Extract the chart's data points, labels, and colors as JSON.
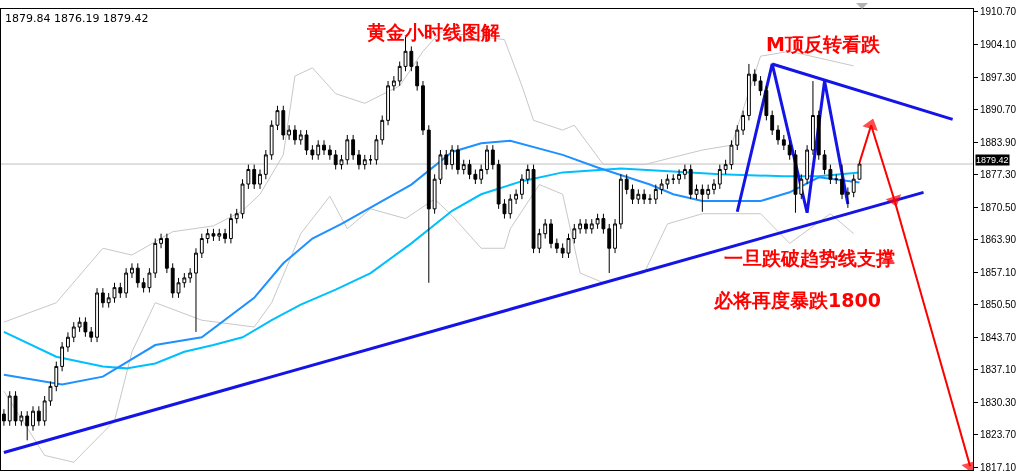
{
  "chart_data": {
    "type": "candlestick",
    "categories": [
      null,
      null,
      null,
      null,
      null,
      null,
      null,
      null,
      null,
      null,
      null,
      null,
      null,
      null,
      null,
      null,
      null,
      null,
      null,
      null,
      null,
      null,
      null,
      null,
      null,
      null,
      null,
      null,
      null,
      null,
      null,
      null,
      null,
      null,
      null,
      null,
      null,
      null,
      null,
      null,
      null,
      null,
      null,
      null,
      null,
      null,
      null,
      null,
      null,
      null,
      null,
      null,
      null,
      null,
      null,
      null,
      null,
      null,
      null,
      null,
      null,
      null,
      null,
      null,
      null,
      null,
      null,
      null,
      null,
      null,
      null,
      null,
      null,
      null,
      null,
      null,
      null,
      null,
      null,
      null,
      null,
      null,
      null,
      null,
      null,
      null,
      null,
      null,
      null,
      null,
      null,
      null,
      null,
      null,
      null,
      null,
      null,
      null,
      null,
      null,
      null,
      null,
      null,
      null,
      null,
      null,
      null,
      null,
      null,
      null,
      null,
      null,
      null,
      null,
      null,
      null,
      null,
      null,
      null,
      null,
      null,
      null,
      null,
      null,
      null,
      null,
      null,
      null,
      null,
      null,
      null,
      null,
      null,
      null,
      null,
      null,
      null,
      null,
      null,
      null,
      null,
      null,
      null,
      null,
      null,
      null,
      null,
      null,
      null,
      null,
      null,
      null,
      null,
      null,
      null,
      null,
      null,
      null,
      null,
      null,
      null,
      null,
      null,
      null,
      null,
      null,
      null
    ],
    "ohlc": [
      [
        1828.0,
        1829.0,
        1825.6,
        1826.6
      ],
      [
        1826.6,
        1832.7,
        1825.6,
        1831.7
      ],
      [
        1831.7,
        1832.7,
        1825.6,
        1826.6
      ],
      [
        1826.6,
        1828.6,
        1825.6,
        1827.6
      ],
      [
        1827.6,
        1828.6,
        1822.6,
        1825.6
      ],
      [
        1825.6,
        1829.6,
        1824.6,
        1828.6
      ],
      [
        1828.6,
        1829.6,
        1825.6,
        1826.6
      ],
      [
        1826.6,
        1831.7,
        1825.6,
        1830.7
      ],
      [
        1830.7,
        1834.7,
        1829.7,
        1833.7
      ],
      [
        1833.7,
        1838.8,
        1832.7,
        1837.8
      ],
      [
        1837.8,
        1842.8,
        1836.8,
        1841.8
      ],
      [
        1841.8,
        1844.8,
        1840.8,
        1843.8
      ],
      [
        1843.8,
        1846.9,
        1842.8,
        1845.9
      ],
      [
        1845.9,
        1847.9,
        1844.9,
        1846.9
      ],
      [
        1846.9,
        1847.9,
        1843.9,
        1844.9
      ],
      [
        1844.9,
        1845.9,
        1842.8,
        1843.8
      ],
      [
        1843.8,
        1853.9,
        1842.8,
        1852.9
      ],
      [
        1852.9,
        1853.9,
        1849.9,
        1850.9
      ],
      [
        1850.9,
        1852.9,
        1849.9,
        1851.9
      ],
      [
        1851.9,
        1855.0,
        1850.9,
        1854.0
      ],
      [
        1854.0,
        1855.0,
        1851.9,
        1852.9
      ],
      [
        1852.9,
        1858.0,
        1851.9,
        1857.0
      ],
      [
        1857.0,
        1859.0,
        1856.0,
        1858.0
      ],
      [
        1858.0,
        1859.0,
        1854.0,
        1855.0
      ],
      [
        1855.0,
        1856.0,
        1853.0,
        1854.0
      ],
      [
        1854.0,
        1858.0,
        1853.0,
        1857.0
      ],
      [
        1857.0,
        1864.1,
        1856.0,
        1863.1
      ],
      [
        1863.1,
        1865.1,
        1862.1,
        1864.1
      ],
      [
        1864.1,
        1865.1,
        1857.0,
        1858.0
      ],
      [
        1858.0,
        1859.0,
        1851.9,
        1852.9
      ],
      [
        1852.9,
        1856.0,
        1851.9,
        1855.0
      ],
      [
        1855.0,
        1857.0,
        1854.0,
        1856.0
      ],
      [
        1856.0,
        1858.0,
        1855.0,
        1857.0
      ],
      [
        1857.0,
        1862.1,
        1844.9,
        1861.1
      ],
      [
        1861.1,
        1865.1,
        1860.1,
        1864.1
      ],
      [
        1864.1,
        1866.1,
        1863.1,
        1865.1
      ],
      [
        1865.1,
        1866.1,
        1863.6,
        1864.6
      ],
      [
        1864.6,
        1866.1,
        1863.6,
        1865.1
      ],
      [
        1865.1,
        1866.1,
        1863.1,
        1864.1
      ],
      [
        1864.1,
        1869.2,
        1863.1,
        1868.2
      ],
      [
        1868.2,
        1870.2,
        1867.2,
        1869.2
      ],
      [
        1869.2,
        1876.3,
        1868.2,
        1875.3
      ],
      [
        1875.3,
        1879.3,
        1874.3,
        1878.3
      ],
      [
        1878.3,
        1879.3,
        1874.3,
        1875.3
      ],
      [
        1875.3,
        1878.3,
        1874.3,
        1877.3
      ],
      [
        1877.3,
        1882.3,
        1876.3,
        1881.3
      ],
      [
        1881.3,
        1888.4,
        1880.3,
        1887.4
      ],
      [
        1887.4,
        1891.4,
        1886.4,
        1890.4
      ],
      [
        1890.4,
        1891.4,
        1884.4,
        1885.4
      ],
      [
        1885.4,
        1887.4,
        1884.4,
        1886.4
      ],
      [
        1886.4,
        1887.4,
        1883.4,
        1884.4
      ],
      [
        1884.4,
        1886.4,
        1883.4,
        1885.4
      ],
      [
        1885.4,
        1886.4,
        1881.3,
        1882.3
      ],
      [
        1882.3,
        1883.3,
        1880.3,
        1881.3
      ],
      [
        1881.3,
        1884.3,
        1880.3,
        1883.3
      ],
      [
        1883.3,
        1884.3,
        1881.3,
        1882.3
      ],
      [
        1882.3,
        1883.3,
        1880.3,
        1881.3
      ],
      [
        1881.3,
        1882.3,
        1878.3,
        1879.3
      ],
      [
        1879.3,
        1881.3,
        1878.3,
        1880.3
      ],
      [
        1880.3,
        1885.4,
        1879.3,
        1884.4
      ],
      [
        1884.4,
        1885.4,
        1880.3,
        1881.3
      ],
      [
        1881.3,
        1882.3,
        1878.3,
        1879.3
      ],
      [
        1879.3,
        1881.3,
        1878.3,
        1880.3
      ],
      [
        1880.3,
        1881.3,
        1879.3,
        1880.3
      ],
      [
        1880.3,
        1885.4,
        1879.3,
        1884.4
      ],
      [
        1884.4,
        1889.4,
        1883.4,
        1888.4
      ],
      [
        1888.4,
        1896.5,
        1887.4,
        1895.5
      ],
      [
        1895.5,
        1897.5,
        1894.5,
        1896.5
      ],
      [
        1896.5,
        1900.5,
        1895.5,
        1899.5
      ],
      [
        1899.5,
        1905.6,
        1898.5,
        1902.6
      ],
      [
        1902.6,
        1903.6,
        1898.5,
        1899.5
      ],
      [
        1899.5,
        1900.5,
        1894.5,
        1895.5
      ],
      [
        1895.5,
        1896.5,
        1885.4,
        1886.4
      ],
      [
        1886.4,
        1887.4,
        1855.0,
        1870.2
      ],
      [
        1870.2,
        1877.3,
        1869.2,
        1876.3
      ],
      [
        1876.3,
        1882.3,
        1875.3,
        1881.3
      ],
      [
        1881.3,
        1882.3,
        1878.3,
        1879.3
      ],
      [
        1879.3,
        1883.3,
        1878.3,
        1882.3
      ],
      [
        1882.3,
        1883.3,
        1877.3,
        1878.3
      ],
      [
        1878.3,
        1880.3,
        1877.3,
        1879.3
      ],
      [
        1879.3,
        1880.3,
        1876.3,
        1877.3
      ],
      [
        1877.3,
        1878.3,
        1875.3,
        1876.3
      ],
      [
        1876.3,
        1879.3,
        1875.3,
        1878.3
      ],
      [
        1878.3,
        1883.3,
        1877.3,
        1882.3
      ],
      [
        1882.3,
        1883.3,
        1878.3,
        1879.3
      ],
      [
        1879.3,
        1880.3,
        1870.2,
        1871.2
      ],
      [
        1871.2,
        1872.2,
        1868.2,
        1869.2
      ],
      [
        1869.2,
        1873.2,
        1868.2,
        1872.2
      ],
      [
        1872.2,
        1874.2,
        1871.2,
        1873.2
      ],
      [
        1873.2,
        1877.3,
        1872.2,
        1876.3
      ],
      [
        1876.3,
        1879.3,
        1875.3,
        1878.3
      ],
      [
        1878.3,
        1879.3,
        1861.1,
        1862.1
      ],
      [
        1862.1,
        1866.1,
        1861.1,
        1865.1
      ],
      [
        1865.1,
        1868.1,
        1864.1,
        1867.1
      ],
      [
        1867.1,
        1868.1,
        1862.1,
        1863.1
      ],
      [
        1863.1,
        1864.1,
        1861.1,
        1862.1
      ],
      [
        1862.1,
        1863.1,
        1860.1,
        1861.1
      ],
      [
        1861.1,
        1865.1,
        1860.1,
        1864.1
      ],
      [
        1864.1,
        1867.1,
        1863.1,
        1866.1
      ],
      [
        1866.1,
        1868.1,
        1865.1,
        1867.1
      ],
      [
        1867.1,
        1868.1,
        1865.1,
        1866.1
      ],
      [
        1866.1,
        1868.1,
        1865.1,
        1867.1
      ],
      [
        1867.1,
        1869.2,
        1866.1,
        1868.2
      ],
      [
        1868.2,
        1869.2,
        1865.1,
        1866.1
      ],
      [
        1866.1,
        1867.1,
        1857.0,
        1862.1
      ],
      [
        1862.1,
        1868.1,
        1861.1,
        1867.1
      ],
      [
        1867.1,
        1877.3,
        1866.1,
        1876.3
      ],
      [
        1876.3,
        1877.3,
        1873.2,
        1874.2
      ],
      [
        1874.2,
        1875.2,
        1871.2,
        1872.2
      ],
      [
        1872.2,
        1874.2,
        1871.2,
        1873.2
      ],
      [
        1873.2,
        1874.2,
        1871.2,
        1872.2
      ],
      [
        1872.2,
        1873.2,
        1871.2,
        1872.2
      ],
      [
        1872.2,
        1875.2,
        1871.2,
        1874.2
      ],
      [
        1874.2,
        1876.3,
        1873.2,
        1875.3
      ],
      [
        1875.3,
        1877.3,
        1874.3,
        1876.3
      ],
      [
        1876.3,
        1877.3,
        1875.3,
        1876.3
      ],
      [
        1876.3,
        1878.3,
        1875.3,
        1877.3
      ],
      [
        1877.3,
        1879.3,
        1876.3,
        1878.3
      ],
      [
        1878.3,
        1879.3,
        1872.2,
        1873.2
      ],
      [
        1873.2,
        1875.2,
        1872.2,
        1874.2
      ],
      [
        1874.2,
        1875.2,
        1869.6,
        1873.2
      ],
      [
        1873.2,
        1875.2,
        1872.2,
        1874.2
      ],
      [
        1874.2,
        1876.3,
        1873.2,
        1875.3
      ],
      [
        1875.3,
        1879.3,
        1874.3,
        1878.3
      ],
      [
        1878.3,
        1880.3,
        1877.3,
        1879.3
      ],
      [
        1879.3,
        1884.3,
        1878.3,
        1883.3
      ],
      [
        1883.3,
        1887.4,
        1882.3,
        1886.4
      ],
      [
        1886.4,
        1890.4,
        1885.4,
        1889.4
      ],
      [
        1889.4,
        1900.0,
        1888.4,
        1897.9
      ],
      [
        1897.9,
        1898.9,
        1895.5,
        1896.5
      ],
      [
        1896.5,
        1897.5,
        1893.5,
        1894.5
      ],
      [
        1894.5,
        1895.5,
        1888.4,
        1889.4
      ],
      [
        1889.4,
        1890.4,
        1885.4,
        1886.4
      ],
      [
        1886.4,
        1887.4,
        1883.4,
        1884.4
      ],
      [
        1884.4,
        1885.4,
        1882.3,
        1883.3
      ],
      [
        1883.3,
        1884.3,
        1880.3,
        1881.3
      ],
      [
        1881.3,
        1882.3,
        1869.4,
        1873.2
      ],
      [
        1873.2,
        1877.3,
        1872.2,
        1876.3
      ],
      [
        1876.3,
        1883.3,
        1875.3,
        1882.3
      ],
      [
        1882.3,
        1896.5,
        1881.3,
        1889.4
      ],
      [
        1889.4,
        1890.4,
        1880.3,
        1881.3
      ],
      [
        1881.3,
        1882.3,
        1877.3,
        1878.3
      ],
      [
        1878.3,
        1879.3,
        1875.3,
        1876.3
      ],
      [
        1876.3,
        1877.3,
        1875.3,
        1876.3
      ],
      [
        1876.3,
        1879.3,
        1872.2,
        1873.2
      ],
      [
        1873.2,
        1874.6,
        1870.4,
        1873.6
      ],
      [
        1873.6,
        1877.3,
        1872.6,
        1876.3
      ],
      [
        1876.3,
        1879.84,
        1876.19,
        1879.42
      ],
      null,
      null,
      null,
      null,
      null,
      null,
      null,
      null,
      null,
      null,
      null,
      null,
      null,
      null,
      null,
      null,
      null,
      null,
      null
    ],
    "series": [
      {
        "type": "line",
        "color": "#c8c8c8",
        "values": [
          1846.9,
          null,
          null,
          null,
          null,
          null,
          null,
          null,
          null,
          1850.9,
          null,
          null,
          null,
          null,
          null,
          null,
          null,
          1862.1,
          null,
          null,
          null,
          null,
          1860.7,
          null,
          null,
          null,
          null,
          null,
          null,
          1865.5,
          null,
          null,
          null,
          null,
          null,
          null,
          1866.7,
          null,
          null,
          null,
          null,
          1869.8,
          null,
          null,
          1873.2,
          null,
          null,
          null,
          1881.3,
          null,
          1897.5,
          null,
          null,
          1899.2,
          null,
          null,
          null,
          1893.9,
          null,
          null,
          null,
          null,
          1891.9,
          null,
          null,
          null,
          null,
          null,
          1895.5,
          null,
          null,
          null,
          1902.6,
          null,
          null,
          1906.6,
          null,
          null,
          null,
          null,
          null,
          null,
          null,
          null,
          null,
          null,
          1905.0,
          null,
          null,
          1895.5,
          null,
          1888.4,
          null,
          null,
          null,
          null,
          1886.4,
          null,
          1887.4,
          null,
          null,
          null,
          null,
          1879.3,
          null,
          null,
          null,
          null,
          null,
          null,
          1879.3,
          null,
          null,
          null,
          null,
          null,
          null,
          null,
          null,
          null,
          1882.3,
          null,
          null,
          null,
          null,
          1883.3,
          null,
          null,
          null,
          null,
          1901.6,
          null,
          null,
          null,
          null,
          1902.6,
          null,
          null,
          null,
          null,
          null,
          null,
          null,
          null,
          null,
          null,
          1899.6,
          null,
          null,
          null,
          null,
          null,
          null,
          null,
          null,
          null,
          null,
          null,
          null,
          null,
          null,
          null,
          null,
          null,
          null,
          null,
          null
        ]
      },
      {
        "type": "line",
        "color": "#c8c8c8",
        "values": [
          1832.7,
          null,
          null,
          null,
          null,
          null,
          null,
          1819.5,
          null,
          null,
          null,
          null,
          1818.1,
          null,
          null,
          null,
          null,
          null,
          null,
          1826.6,
          null,
          null,
          1840.8,
          null,
          null,
          null,
          1850.9,
          null,
          null,
          null,
          null,
          null,
          null,
          null,
          1847.3,
          null,
          null,
          null,
          null,
          null,
          null,
          null,
          null,
          1845.9,
          null,
          null,
          1850.9,
          null,
          null,
          null,
          null,
          1865.1,
          null,
          null,
          null,
          null,
          1872.8,
          null,
          null,
          1866.1,
          null,
          null,
          null,
          1870.2,
          null,
          null,
          null,
          null,
          null,
          1868.2,
          null,
          null,
          null,
          null,
          1872.2,
          null,
          null,
          1868.8,
          null,
          null,
          null,
          null,
          1862.1,
          null,
          null,
          null,
          1862.1,
          1866.1,
          null,
          null,
          null,
          null,
          1875.2,
          null,
          null,
          null,
          1873.2,
          null,
          null,
          1857.0,
          null,
          null,
          null,
          1855.0,
          null,
          null,
          null,
          null,
          null,
          null,
          1857.0,
          null,
          null,
          null,
          1867.1,
          null,
          null,
          null,
          null,
          null,
          1869.2,
          null,
          null,
          null,
          null,
          null,
          null,
          null,
          null,
          null,
          1869.2,
          null,
          null,
          null,
          null,
          1863.1,
          null,
          null,
          null,
          null,
          null,
          null,
          1869.2,
          null,
          null,
          null,
          1865.1,
          null,
          null,
          null,
          null,
          null,
          null,
          null,
          null,
          null,
          null,
          null,
          null,
          null,
          null,
          null,
          null,
          null,
          null,
          null,
          null
        ]
      },
      {
        "type": "line",
        "color": "#00bfff",
        "values": [
          1844.9,
          null,
          null,
          null,
          null,
          null,
          null,
          null,
          null,
          1839.8,
          null,
          null,
          null,
          null,
          null,
          null,
          null,
          1837.8,
          null,
          null,
          null,
          1837.4,
          null,
          null,
          null,
          null,
          1838.4,
          null,
          null,
          null,
          null,
          1840.8,
          null,
          null,
          null,
          null,
          1842.2,
          null,
          null,
          null,
          null,
          1843.8,
          null,
          null,
          null,
          null,
          1847.3,
          null,
          null,
          null,
          null,
          1850.5,
          null,
          null,
          null,
          null,
          null,
          1853.6,
          null,
          null,
          null,
          null,
          null,
          1857.0,
          null,
          null,
          null,
          null,
          null,
          null,
          1863.1,
          null,
          null,
          null,
          null,
          null,
          null,
          1869.8,
          null,
          null,
          null,
          null,
          1873.2,
          null,
          null,
          null,
          null,
          null,
          null,
          1875.9,
          null,
          null,
          null,
          null,
          null,
          null,
          1877.7,
          null,
          null,
          null,
          null,
          null,
          null,
          null,
          null,
          null,
          1878.5,
          null,
          null,
          null,
          null,
          null,
          null,
          null,
          null,
          1877.9,
          null,
          null,
          null,
          null,
          null,
          null,
          null,
          1877.3,
          null,
          null,
          null,
          null,
          null,
          null,
          null,
          null,
          null,
          null,
          1876.9,
          null,
          null,
          null,
          null,
          null,
          1876.9,
          null,
          null,
          null,
          null,
          null,
          null,
          1877.7,
          null,
          null,
          null,
          null,
          null,
          null,
          null,
          null,
          null,
          null,
          null,
          null,
          null,
          null,
          null,
          null,
          null,
          null,
          null
        ]
      },
      {
        "type": "line",
        "color": "#1e90ff",
        "values": [
          1836.1,
          null,
          null,
          null,
          null,
          null,
          null,
          null,
          null,
          null,
          1834.1,
          null,
          null,
          null,
          null,
          null,
          null,
          1835.7,
          null,
          null,
          null,
          null,
          null,
          null,
          null,
          null,
          1842.2,
          null,
          null,
          null,
          null,
          null,
          null,
          null,
          1843.8,
          null,
          null,
          null,
          null,
          null,
          null,
          null,
          null,
          1851.9,
          null,
          null,
          null,
          null,
          1859.0,
          null,
          null,
          null,
          null,
          1864.1,
          null,
          null,
          null,
          null,
          1867.1,
          null,
          null,
          null,
          null,
          null,
          null,
          null,
          null,
          null,
          null,
          null,
          1875.2,
          null,
          null,
          null,
          null,
          null,
          null,
          1881.9,
          null,
          null,
          null,
          null,
          1883.7,
          null,
          null,
          null,
          null,
          1884.2,
          null,
          null,
          null,
          null,
          null,
          null,
          null,
          null,
          1881.3,
          null,
          null,
          null,
          null,
          null,
          1878.7,
          null,
          null,
          null,
          null,
          null,
          null,
          null,
          null,
          1875.2,
          null,
          null,
          null,
          1873.2,
          null,
          null,
          null,
          null,
          1871.8,
          null,
          null,
          null,
          null,
          null,
          null,
          null,
          null,
          null,
          1871.8,
          null,
          null,
          null,
          null,
          1873.6,
          null,
          null,
          null,
          null,
          1876.7,
          null,
          null,
          null,
          null,
          null,
          null,
          1875.6,
          null,
          null,
          null,
          null,
          null,
          null,
          null,
          null,
          null,
          null,
          null,
          null,
          null,
          null,
          null,
          null,
          null,
          null,
          null
        ]
      },
      {
        "type": "line",
        "color": "#1414e6",
        "values": [
          1820.1,
          null,
          null,
          null,
          null,
          null,
          null,
          null,
          null,
          null,
          null,
          null,
          null,
          null,
          null,
          null,
          null,
          null,
          null,
          null,
          null,
          null,
          null,
          null,
          null,
          null,
          null,
          null,
          null,
          null,
          null,
          null,
          null,
          null,
          null,
          null,
          null,
          null,
          null,
          null,
          null,
          null,
          null,
          null,
          null,
          null,
          null,
          null,
          null,
          null,
          null,
          null,
          null,
          null,
          null,
          null,
          null,
          null,
          null,
          null,
          null,
          null,
          null,
          null,
          null,
          null,
          null,
          null,
          null,
          null,
          null,
          null,
          null,
          null,
          null,
          null,
          null,
          null,
          null,
          null,
          null,
          null,
          null,
          null,
          null,
          null,
          null,
          null,
          null,
          null,
          null,
          null,
          null,
          null,
          null,
          null,
          null,
          null,
          null,
          null,
          null,
          null,
          null,
          null,
          null,
          null,
          null,
          null,
          null,
          null,
          null,
          null,
          null,
          null,
          null,
          null,
          null,
          null,
          null,
          null,
          null,
          null,
          null,
          null,
          null,
          null,
          null,
          null,
          null,
          null,
          null,
          null,
          null,
          null,
          null,
          null,
          null,
          null,
          null,
          null,
          null,
          null,
          null,
          null,
          null,
          null,
          null,
          null,
          null,
          null,
          null,
          null,
          null,
          null,
          null,
          null,
          null,
          null,
          1873.6,
          null,
          null,
          null,
          null,
          null,
          null,
          null,
          null
        ]
      },
      {
        "type": "line",
        "color": "#1414e6",
        "values": [
          null,
          null,
          null,
          null,
          null,
          null,
          null,
          null,
          null,
          null,
          null,
          null,
          null,
          null,
          null,
          null,
          null,
          null,
          null,
          null,
          null,
          null,
          null,
          null,
          null,
          null,
          null,
          null,
          null,
          null,
          null,
          null,
          null,
          null,
          null,
          null,
          null,
          null,
          null,
          null,
          null,
          null,
          null,
          null,
          null,
          null,
          null,
          null,
          null,
          null,
          null,
          null,
          null,
          null,
          null,
          null,
          null,
          null,
          null,
          null,
          null,
          null,
          null,
          null,
          null,
          null,
          null,
          null,
          null,
          null,
          null,
          null,
          null,
          null,
          null,
          null,
          null,
          null,
          null,
          null,
          null,
          null,
          null,
          null,
          null,
          null,
          null,
          null,
          null,
          null,
          null,
          null,
          null,
          null,
          null,
          null,
          null,
          null,
          null,
          null,
          null,
          null,
          null,
          null,
          null,
          null,
          null,
          null,
          null,
          null,
          null,
          null,
          null,
          null,
          null,
          null,
          null,
          null,
          null,
          null,
          null,
          null,
          null,
          null,
          null,
          null,
          1869.6,
          null,
          null,
          null,
          null,
          null,
          1900.0,
          null,
          null,
          null,
          null,
          null,
          1869.4,
          null,
          null,
          1896.5,
          null,
          null,
          null,
          1871.2,
          null,
          null,
          null,
          null,
          null,
          null,
          null,
          null,
          null,
          null,
          null,
          null,
          null,
          null,
          null,
          null,
          null,
          null,
          null,
          null,
          null
        ]
      },
      {
        "type": "line",
        "color": "#1414e6",
        "values": [
          null,
          null,
          null,
          null,
          null,
          null,
          null,
          null,
          null,
          null,
          null,
          null,
          null,
          null,
          null,
          null,
          null,
          null,
          null,
          null,
          null,
          null,
          null,
          null,
          null,
          null,
          null,
          null,
          null,
          null,
          null,
          null,
          null,
          null,
          null,
          null,
          null,
          null,
          null,
          null,
          null,
          null,
          null,
          null,
          null,
          null,
          null,
          null,
          null,
          null,
          null,
          null,
          null,
          null,
          null,
          null,
          null,
          null,
          null,
          null,
          null,
          null,
          null,
          null,
          null,
          null,
          null,
          null,
          null,
          null,
          null,
          null,
          null,
          null,
          null,
          null,
          null,
          null,
          null,
          null,
          null,
          null,
          null,
          null,
          null,
          null,
          null,
          null,
          null,
          null,
          null,
          null,
          null,
          null,
          null,
          null,
          null,
          null,
          null,
          null,
          null,
          null,
          null,
          null,
          null,
          null,
          null,
          null,
          null,
          null,
          null,
          null,
          null,
          null,
          null,
          null,
          null,
          null,
          null,
          null,
          null,
          null,
          null,
          null,
          null,
          null,
          null,
          null,
          null,
          null,
          null,
          null,
          1900.0,
          null,
          null,
          null,
          null,
          null,
          null,
          null,
          null,
          null,
          null,
          null,
          null,
          null,
          null,
          null,
          null,
          null,
          null,
          null,
          null,
          null,
          null,
          null,
          null,
          null,
          null,
          null,
          null,
          null,
          null,
          1888.6,
          null,
          null,
          null
        ]
      },
      {
        "type": "line",
        "color": "#ff0000",
        "marker": "triangle",
        "values": [
          null,
          null,
          null,
          null,
          null,
          null,
          null,
          null,
          null,
          null,
          null,
          null,
          null,
          null,
          null,
          null,
          null,
          null,
          null,
          null,
          null,
          null,
          null,
          null,
          null,
          null,
          null,
          null,
          null,
          null,
          null,
          null,
          null,
          null,
          null,
          null,
          null,
          null,
          null,
          null,
          null,
          null,
          null,
          null,
          null,
          null,
          null,
          null,
          null,
          null,
          null,
          null,
          null,
          null,
          null,
          null,
          null,
          null,
          null,
          null,
          null,
          null,
          null,
          null,
          null,
          null,
          null,
          null,
          null,
          null,
          null,
          null,
          null,
          null,
          null,
          null,
          null,
          null,
          null,
          null,
          null,
          null,
          null,
          null,
          null,
          null,
          null,
          null,
          null,
          null,
          null,
          null,
          null,
          null,
          null,
          null,
          null,
          null,
          null,
          null,
          null,
          null,
          null,
          null,
          null,
          null,
          null,
          null,
          null,
          null,
          null,
          null,
          null,
          null,
          null,
          null,
          null,
          null,
          null,
          null,
          null,
          null,
          null,
          null,
          null,
          null,
          null,
          null,
          null,
          null,
          null,
          null,
          null,
          null,
          null,
          null,
          null,
          null,
          null,
          null,
          null,
          null,
          null,
          null,
          null,
          null,
          null,
          1879.7,
          null,
          1887.4,
          null,
          null,
          null,
          1872.0,
          null,
          null,
          null,
          null,
          null,
          null,
          null,
          null,
          null,
          null,
          null,
          null,
          1817.3
        ]
      }
    ],
    "ylim": [
      1816.5,
      1911.3
    ],
    "yticks": [
      {
        "value": 1910.7,
        "label": "1910.70"
      },
      {
        "value": 1904.1,
        "label": "1904.10"
      },
      {
        "value": 1897.3,
        "label": "1897.30"
      },
      {
        "value": 1890.7,
        "label": "1890.70"
      },
      {
        "value": 1883.9,
        "label": "1883.90"
      },
      {
        "value": 1877.3,
        "label": "1877.30"
      },
      {
        "value": 1870.5,
        "label": "1870.50"
      },
      {
        "value": 1863.9,
        "label": "1863.90"
      },
      {
        "value": 1857.1,
        "label": "1857.10"
      },
      {
        "value": 1850.5,
        "label": "1850.50"
      },
      {
        "value": 1843.7,
        "label": "1843.70"
      },
      {
        "value": 1837.1,
        "label": "1837.10"
      },
      {
        "value": 1830.3,
        "label": "1830.30"
      },
      {
        "value": 1823.7,
        "label": "1823.70"
      },
      {
        "value": 1817.1,
        "label": "1817.10"
      }
    ],
    "tick_labels": "y",
    "ref_lines": [
      {
        "axis": "y",
        "value": 1879.42,
        "label": "1879.42",
        "color": "#c0c0c0"
      }
    ],
    "annotations": [
      "1879.84 1876.19 1879.42",
      "黄金小时线图解",
      "M顶反转看跌",
      "一旦跌破趋势线支撑",
      "必将再度暴跌1800"
    ]
  }
}
